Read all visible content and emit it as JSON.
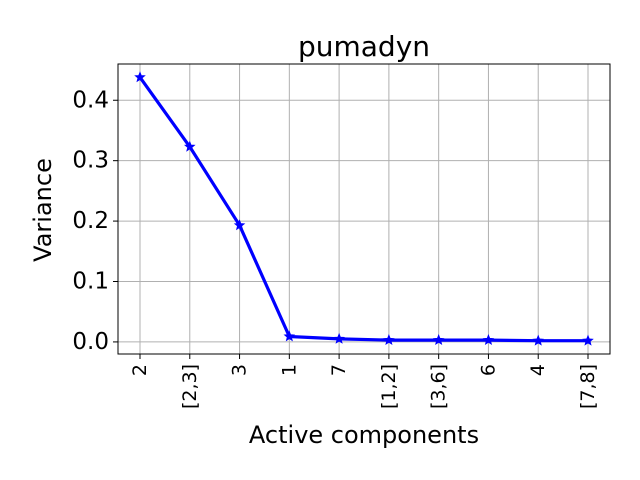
{
  "chart_data": {
    "type": "line",
    "title": "pumadyn",
    "xlabel": "Active components",
    "ylabel": "Variance",
    "categories": [
      "2",
      "[2,3]",
      "3",
      "1",
      "7",
      "[1,2]",
      "[3,6]",
      "6",
      "4",
      "[7,8]"
    ],
    "series": [
      {
        "values": [
          0.438,
          0.323,
          0.193,
          0.009,
          0.005,
          0.003,
          0.003,
          0.003,
          0.002,
          0.002
        ],
        "color": "#0000ff",
        "marker": "star"
      }
    ],
    "ylim": [
      -0.02,
      0.46
    ],
    "yticks": [
      0.0,
      0.1,
      0.2,
      0.3,
      0.4
    ],
    "ytick_labels": [
      "0.0",
      "0.1",
      "0.2",
      "0.3",
      "0.4"
    ],
    "grid": true,
    "legend": "none"
  }
}
